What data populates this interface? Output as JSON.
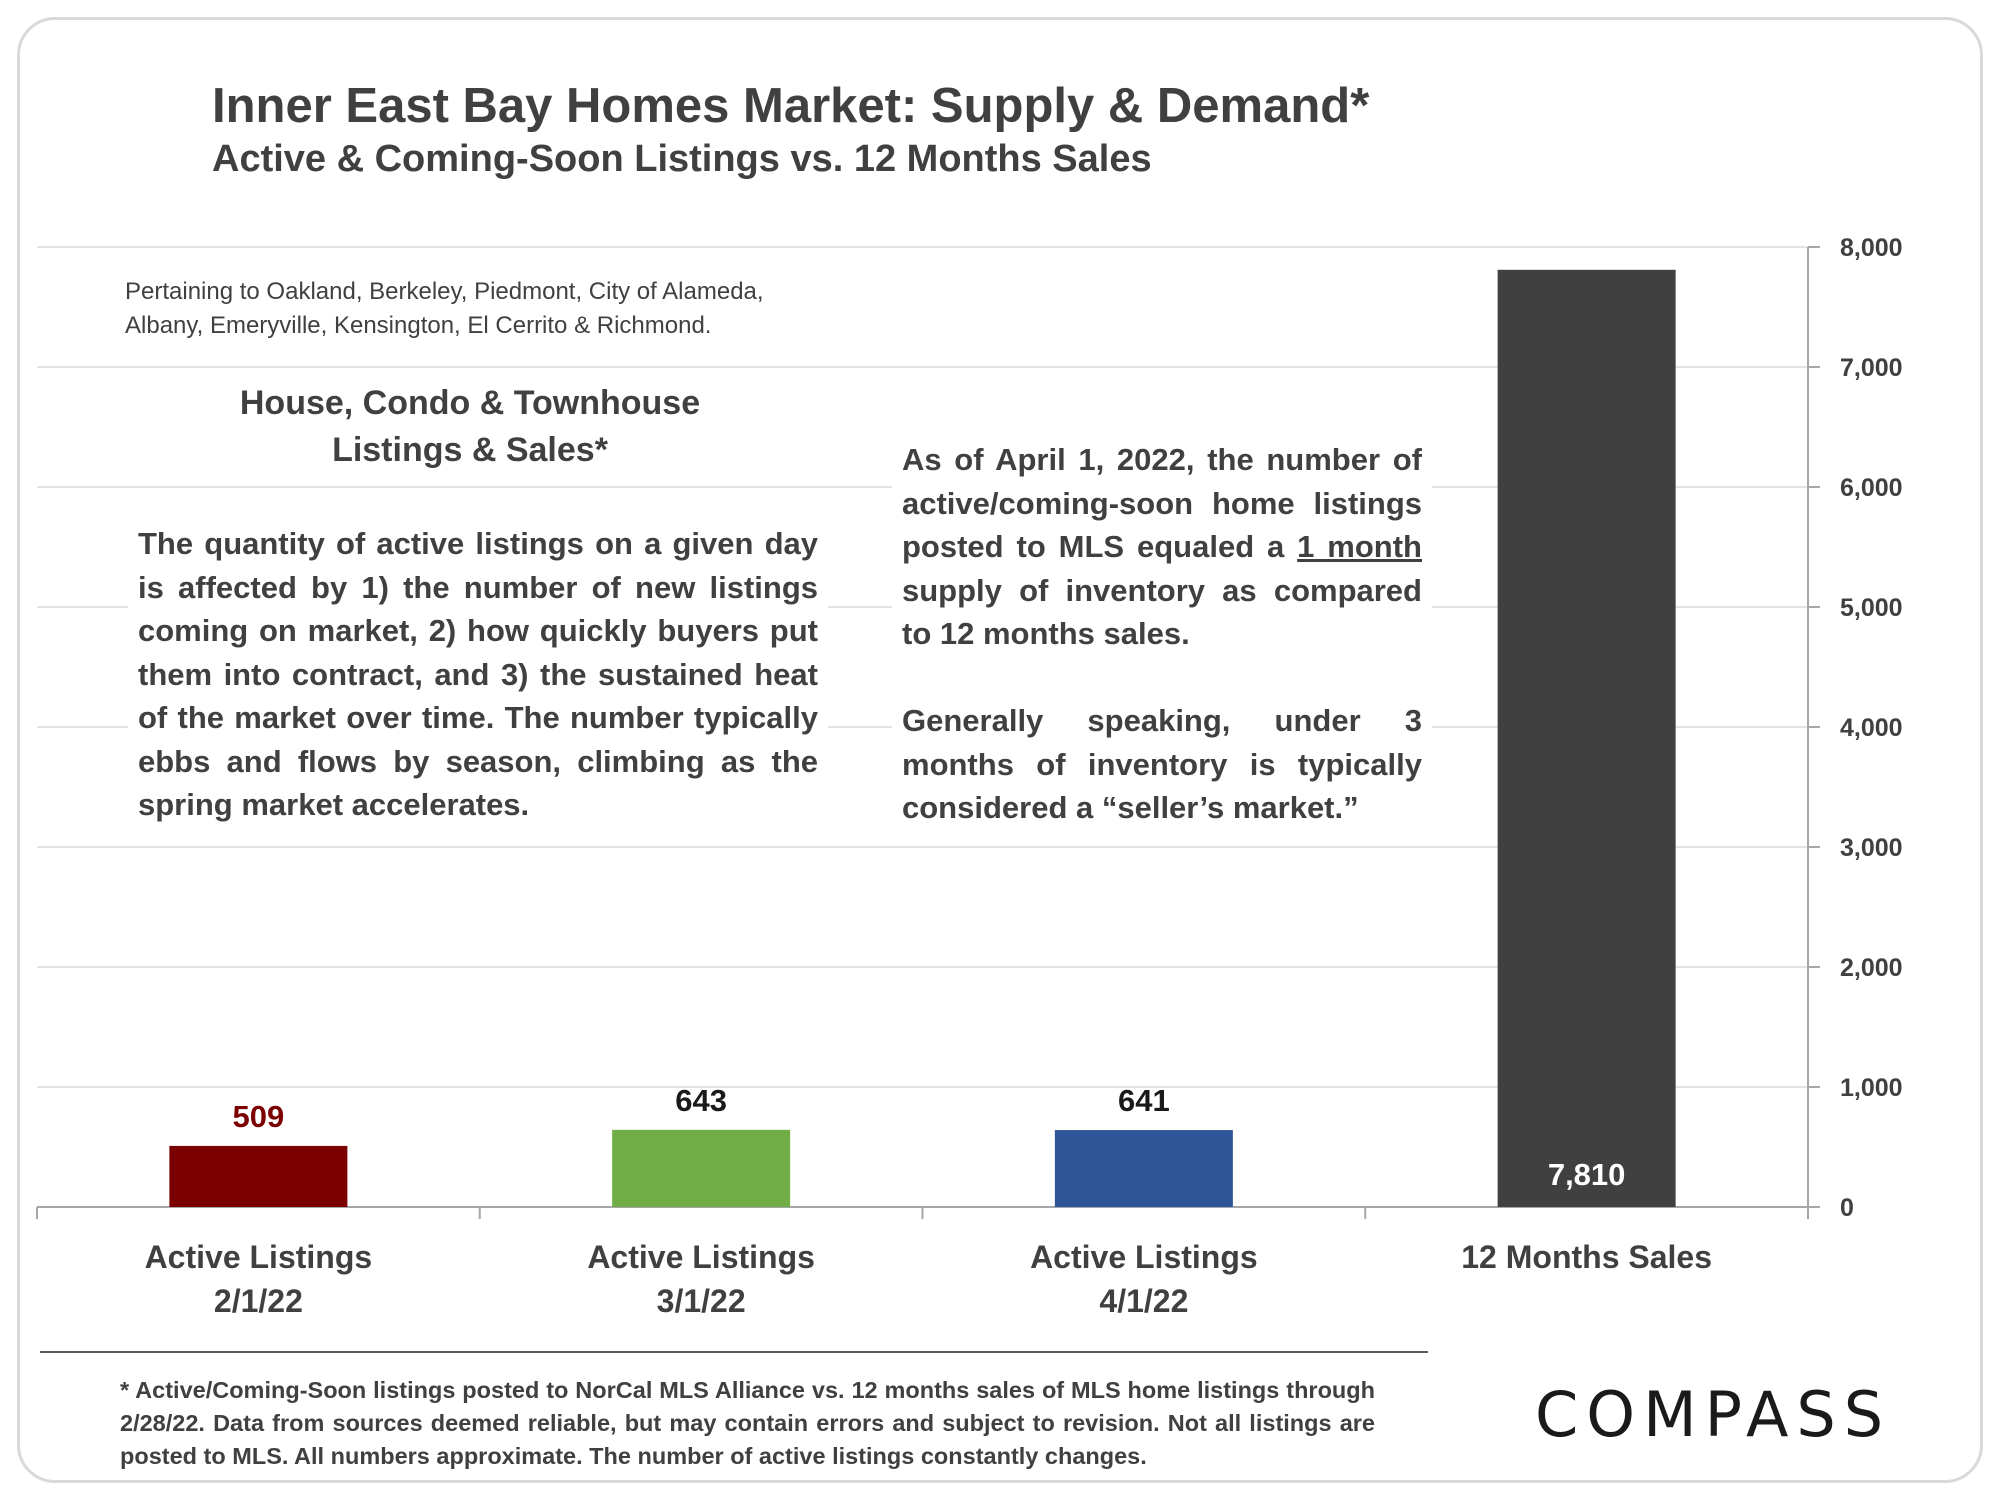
{
  "title": "Inner East Bay Homes Market: Supply & Demand*",
  "subtitle": "Active & Coming-Soon Listings vs. 12 Months Sales",
  "pertaining_note_line1": "Pertaining to Oakland, Berkeley, Piedmont, City of Alameda,",
  "pertaining_note_line2": "Albany, Emeryville, Kensington, El Cerrito & Richmond.",
  "panel_heading_line1": "House, Condo & Townhouse",
  "panel_heading_line2": "Listings & Sales*",
  "left_paragraph": "The quantity of active listings on a given day is affected by 1) the number of new listings coming on market, 2) how quickly buyers put them into contract, and 3) the sustained heat of the market over time. The number typically ebbs and flows by season, climbing as the spring market accelerates.",
  "right_paragraph_1_a": "As of April 1, 2022, the number of active/coming-soon home listings posted to MLS equaled a ",
  "right_paragraph_1_underlined": "1 month",
  "right_paragraph_1_b": " supply of inventory as compared to 12 months sales.",
  "right_paragraph_2": "Generally speaking, under 3 months of inventory is typically considered a “seller’s market.”",
  "footnote": "* Active/Coming-Soon listings posted to NorCal MLS Alliance vs. 12 months sales of MLS home listings through 2/28/22.  Data from sources deemed reliable, but may contain errors and subject to revision.  Not all listings are posted to MLS. All numbers approximate. The number of active listings constantly changes.",
  "logo": "COMPASS",
  "chart_data": {
    "type": "bar",
    "categories": [
      [
        "Active Listings",
        "2/1/22"
      ],
      [
        "Active Listings",
        "3/1/22"
      ],
      [
        "Active Listings",
        "4/1/22"
      ],
      [
        "12 Months Sales"
      ]
    ],
    "values": [
      509,
      643,
      641,
      7810
    ],
    "data_labels": [
      "509",
      "643",
      "641",
      "7,810"
    ],
    "bar_colors": [
      "#7b0000",
      "#70ad47",
      "#2e5597",
      "#404040"
    ],
    "label_colors": [
      "#7b0000",
      "#1a1a1a",
      "#1a1a1a",
      "#ffffff"
    ],
    "label_position": [
      "outside",
      "outside",
      "outside",
      "inside"
    ],
    "ylim": [
      0,
      8000
    ],
    "yticks": [
      0,
      1000,
      2000,
      3000,
      4000,
      5000,
      6000,
      7000,
      8000
    ],
    "ytick_labels": [
      "0",
      "1,000",
      "2,000",
      "3,000",
      "4,000",
      "5,000",
      "6,000",
      "7,000",
      "8,000"
    ],
    "y_axis_side": "right",
    "grid": true,
    "legend": "none",
    "xlabel": "",
    "ylabel": ""
  }
}
